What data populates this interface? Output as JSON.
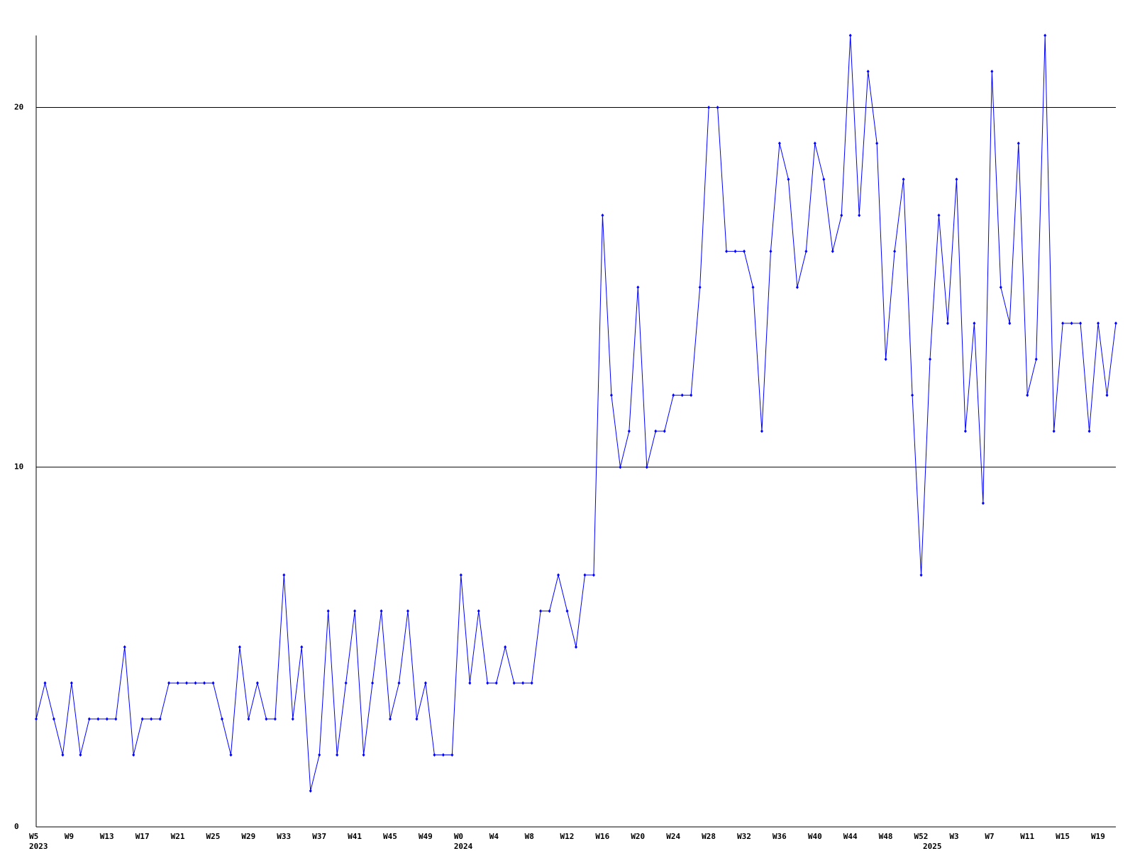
{
  "chart_data": {
    "type": "line",
    "categories": [
      "W5",
      null,
      null,
      null,
      "W9",
      null,
      null,
      null,
      "W13",
      null,
      null,
      null,
      "W17",
      null,
      null,
      null,
      "W21",
      null,
      null,
      null,
      "W25",
      null,
      null,
      null,
      "W29",
      null,
      null,
      null,
      "W33",
      null,
      null,
      null,
      "W37",
      null,
      null,
      null,
      "W41",
      null,
      null,
      null,
      "W45",
      null,
      null,
      null,
      "W49",
      null,
      null,
      null,
      "W0",
      null,
      null,
      null,
      "W4",
      null,
      null,
      null,
      "W8",
      null,
      null,
      null,
      "W12",
      null,
      null,
      null,
      "W16",
      null,
      null,
      null,
      "W20",
      null,
      null,
      null,
      "W24",
      null,
      null,
      null,
      "W28",
      null,
      null,
      null,
      "W32",
      null,
      null,
      null,
      "W36",
      null,
      null,
      null,
      "W40",
      null,
      null,
      null,
      "W44",
      null,
      null,
      null,
      "W48",
      null,
      null,
      null,
      "W52",
      null,
      null,
      null,
      "W3",
      null,
      null,
      null,
      "W7",
      null,
      null,
      null,
      "W11",
      null,
      null,
      null,
      "W15",
      null,
      null,
      null,
      "W19",
      null,
      null
    ],
    "years": [
      "2023",
      null,
      null,
      null,
      null,
      null,
      null,
      null,
      null,
      null,
      null,
      null,
      null,
      null,
      null,
      null,
      null,
      null,
      null,
      null,
      null,
      null,
      null,
      null,
      null,
      null,
      null,
      null,
      null,
      null,
      null,
      null,
      null,
      null,
      null,
      null,
      null,
      null,
      null,
      null,
      null,
      null,
      null,
      null,
      null,
      null,
      null,
      null,
      "2024",
      null,
      null,
      null,
      null,
      null,
      null,
      null,
      null,
      null,
      null,
      null,
      null,
      null,
      null,
      null,
      null,
      null,
      null,
      null,
      null,
      null,
      null,
      null,
      null,
      null,
      null,
      null,
      null,
      null,
      null,
      null,
      null,
      null,
      null,
      null,
      null,
      null,
      null,
      null,
      null,
      null,
      null,
      null,
      null,
      null,
      null,
      null,
      null,
      null,
      null,
      null,
      null,
      "2025",
      null,
      null,
      null,
      null,
      null,
      null,
      null,
      null,
      null,
      null,
      null,
      null,
      null,
      null,
      null,
      null,
      null,
      null,
      null,
      null
    ],
    "values": [
      3,
      4,
      3,
      2,
      4,
      2,
      3,
      3,
      3,
      3,
      5,
      2,
      3,
      3,
      3,
      4,
      4,
      4,
      4,
      4,
      4,
      3,
      2,
      5,
      3,
      4,
      3,
      3,
      7,
      3,
      5,
      1,
      2,
      6,
      2,
      4,
      6,
      2,
      4,
      6,
      3,
      4,
      6,
      3,
      4,
      2,
      2,
      2,
      7,
      4,
      6,
      4,
      4,
      5,
      4,
      4,
      4,
      6,
      6,
      7,
      6,
      5,
      7,
      7,
      17,
      12,
      10,
      11,
      15,
      10,
      11,
      11,
      12,
      12,
      12,
      15,
      20,
      20,
      16,
      16,
      16,
      15,
      11,
      16,
      19,
      18,
      15,
      16,
      19,
      18,
      16,
      17,
      22,
      17,
      21,
      19,
      13,
      16,
      18,
      12,
      7,
      13,
      17,
      14,
      18,
      11,
      14,
      9,
      21,
      15,
      14,
      19,
      12,
      13,
      22,
      11,
      14,
      14,
      14,
      11,
      14,
      12,
      14
    ],
    "color": "#0000ff",
    "ylim": [
      0,
      22
    ],
    "yticks": [
      0,
      10,
      20
    ],
    "grid": true
  }
}
